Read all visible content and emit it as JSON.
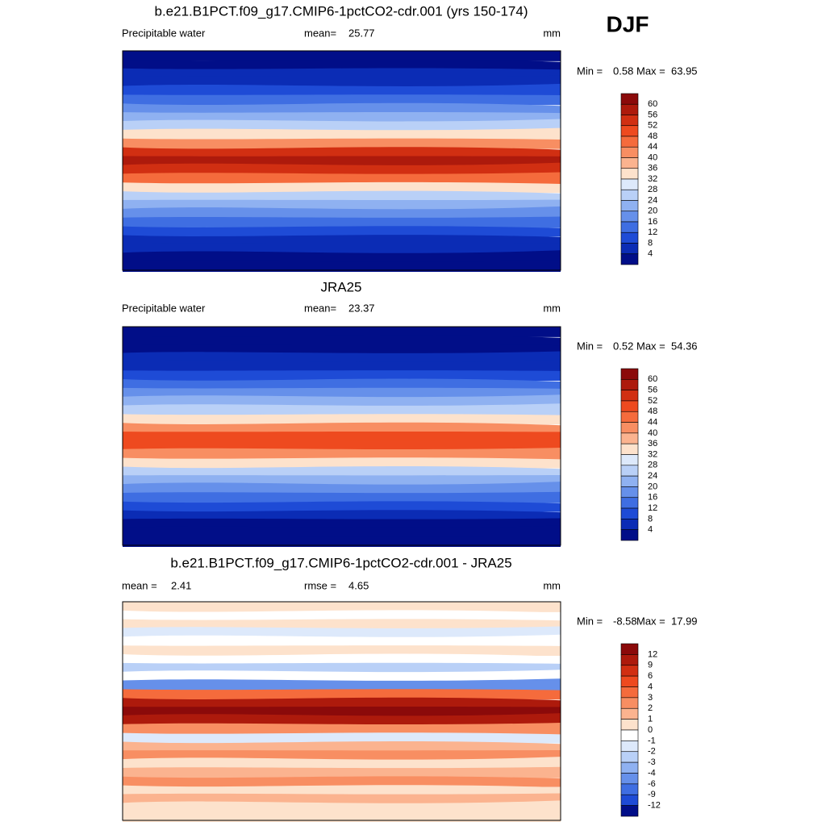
{
  "season": "DJF",
  "panels": [
    {
      "title": "b.e21.B1PCT.f09_g17.CMIP6-1pctCO2-cdr.001 (yrs 150-174)",
      "left": "Precipitable water",
      "center_label": "mean=",
      "center_value": 25.77,
      "units": "mm",
      "min_label": "Min =",
      "min": 0.58,
      "max_label": "Max =",
      "max": 63.95,
      "colorbar": {
        "labels": [
          60,
          56,
          52,
          48,
          44,
          40,
          36,
          32,
          28,
          24,
          20,
          16,
          12,
          8,
          4
        ],
        "colors": [
          "#8b0a0a",
          "#ad1a0c",
          "#d12f12",
          "#ee4a1f",
          "#f56b3c",
          "#f88e62",
          "#fbb38f",
          "#fde2cc",
          "#dde9fb",
          "#b9d0f7",
          "#8fb1f1",
          "#6690ea",
          "#3f6ee2",
          "#1e4bd6",
          "#0b2cb5",
          "#010e88"
        ]
      }
    },
    {
      "title": "JRA25",
      "left": "Precipitable water",
      "center_label": "mean=",
      "center_value": 23.37,
      "units": "mm",
      "min_label": "Min =",
      "min": 0.52,
      "max_label": "Max =",
      "max": 54.36,
      "colorbar": {
        "labels": [
          60,
          56,
          52,
          48,
          44,
          40,
          36,
          32,
          28,
          24,
          20,
          16,
          12,
          8,
          4
        ],
        "colors": [
          "#8b0a0a",
          "#ad1a0c",
          "#d12f12",
          "#ee4a1f",
          "#f56b3c",
          "#f88e62",
          "#fbb38f",
          "#fde2cc",
          "#dde9fb",
          "#b9d0f7",
          "#8fb1f1",
          "#6690ea",
          "#3f6ee2",
          "#1e4bd6",
          "#0b2cb5",
          "#010e88"
        ]
      }
    },
    {
      "title": "b.e21.B1PCT.f09_g17.CMIP6-1pctCO2-cdr.001 - JRA25",
      "left_label": "mean =",
      "left_value": 2.41,
      "center_label": "rmse =",
      "center_value": 4.65,
      "units": "mm",
      "min_label": "Min =",
      "min": -8.58,
      "max_label": "Max =",
      "max": 17.99,
      "colorbar": {
        "labels": [
          12,
          9,
          6,
          4,
          3,
          2,
          1,
          0,
          -1,
          -2,
          -3,
          -4,
          -6,
          -9,
          -12
        ],
        "colors": [
          "#8b0a0a",
          "#ad1a0c",
          "#d12f12",
          "#ee4a1f",
          "#f56b3c",
          "#f88e62",
          "#fbb38f",
          "#fde2cc",
          "#ffffff",
          "#dde9fb",
          "#b9d0f7",
          "#8fb1f1",
          "#6690ea",
          "#3f6ee2",
          "#1e4bd6",
          "#010e88"
        ]
      }
    }
  ]
}
